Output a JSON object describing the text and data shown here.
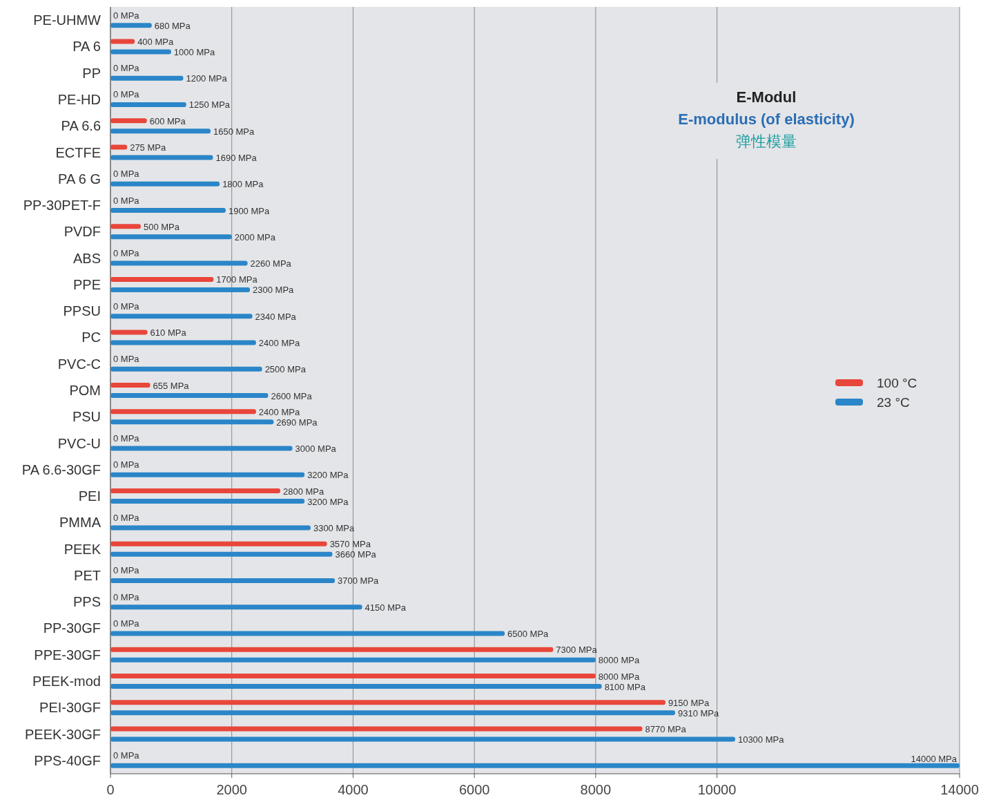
{
  "chart_data": {
    "type": "bar",
    "orientation": "horizontal",
    "title": "E-Modul",
    "subtitle": "E-modulus (of elasticity)",
    "annotations": [
      "弹性模量"
    ],
    "categories": [
      "PE-UHMW",
      "PA 6",
      "PP",
      "PE-HD",
      "PA 6.6",
      "ECTFE",
      "PA 6 G",
      "PP-30PET-F",
      "PVDF",
      "ABS",
      "PPE",
      "PPSU",
      "PC",
      "PVC-C",
      "POM",
      "PSU",
      "PVC-U",
      "PA 6.6-30GF",
      "PEI",
      "PMMA",
      "PEEK",
      "PET",
      "PPS",
      "PP-30GF",
      "PPE-30GF",
      "PEEK-mod",
      "PEI-30GF",
      "PEEK-30GF",
      "PPS-40GF"
    ],
    "series": [
      {
        "name": "100 °C",
        "color": "#e8463a",
        "values": [
          0,
          400,
          0,
          0,
          600,
          275,
          0,
          0,
          500,
          0,
          1700,
          0,
          610,
          0,
          655,
          2400,
          0,
          0,
          2800,
          0,
          3570,
          0,
          0,
          0,
          7300,
          8000,
          9150,
          8770,
          0
        ],
        "value_labels": [
          "0 MPa",
          "400 MPa",
          "0 MPa",
          "0 MPa",
          "600 MPa",
          "275 MPa",
          "0 MPa",
          "0 MPa",
          "500 MPa",
          "0 MPa",
          "1700 MPa",
          "0 MPa",
          "610 MPa",
          "0 MPa",
          "655 MPa",
          "2400 MPa",
          "0 MPa",
          "0 MPa",
          "2800 MPa",
          "0 MPa",
          "3570 MPa",
          "0 MPa",
          "0 MPa",
          "0 MPa",
          "7300 MPa",
          "8000 MPa",
          "9150 MPa",
          "8770 MPa",
          "0 MPa"
        ]
      },
      {
        "name": "23 °C",
        "color": "#2a86c8",
        "values": [
          680,
          1000,
          1200,
          1250,
          1650,
          1690,
          1800,
          1900,
          2000,
          2260,
          2300,
          2340,
          2400,
          2500,
          2600,
          2690,
          3000,
          3200,
          3200,
          3300,
          3660,
          3700,
          4150,
          6500,
          8000,
          8100,
          9310,
          10300,
          14000
        ],
        "value_labels": [
          "680 MPa",
          "1000 MPa",
          "1200 MPa",
          "1250 MPa",
          "1650 MPa",
          "1690 MPa",
          "1800 MPa",
          "1900 MPa",
          "2000 MPa",
          "2260 MPa",
          "2300 MPa",
          "2340 MPa",
          "2400 MPa",
          "2500 MPa",
          "2600 MPa",
          "2690 MPa",
          "3000 MPa",
          "3200 MPa",
          "3200 MPa",
          "3300 MPa",
          "3660 MPa",
          "3700 MPa",
          "4150 MPa",
          "6500 MPa",
          "8000 MPa",
          "8100 MPa",
          "9310 MPa",
          "10300 MPa",
          "14000 MPa"
        ]
      }
    ],
    "xlim": [
      0,
      14000
    ],
    "xticks": [
      0,
      2000,
      4000,
      6000,
      8000,
      10000,
      14000
    ],
    "grid": "x",
    "legend": "right"
  }
}
